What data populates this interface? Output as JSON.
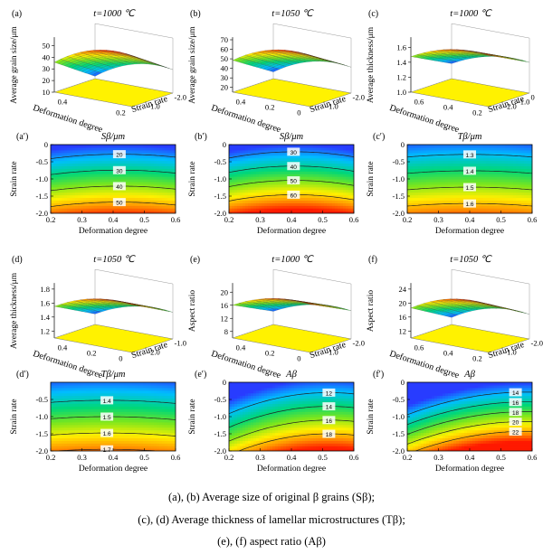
{
  "figure": {
    "captions": [
      "(a), (b) Average  size of original β grains (Sβ);",
      "(c), (d) Average thickness of lamellar microstructures (Tβ);",
      "(e), (f) aspect ratio (Aβ)"
    ]
  },
  "colors": {
    "high": "#ff2a00",
    "mid": "#ffee00",
    "low": "#00c8ff",
    "floor": "#fff200"
  },
  "chart_data": [
    {
      "type": "surface3d",
      "panel": "(a)",
      "title": "t=1000 ℃",
      "zlabel": "Average grain size/μm",
      "xlabel": "Deformation degree",
      "ylabel": "Strain rate",
      "x_ticks": [
        "0.4",
        "0.2"
      ],
      "y_ticks": [
        "-1.0",
        "-2.0"
      ],
      "z_ticks": [
        "10",
        "20",
        "30",
        "40",
        "50"
      ],
      "zlim": [
        10,
        55
      ],
      "surface_range": [
        12,
        55
      ]
    },
    {
      "type": "surface3d",
      "panel": "(b)",
      "title": "t=1050 ℃",
      "zlabel": "Average grain size/μm",
      "xlabel": "Deformation degree",
      "ylabel": "Strain rate",
      "x_ticks": [
        "0.4",
        "0.2",
        "0"
      ],
      "y_ticks": [
        "-1.0",
        "-2.0"
      ],
      "z_ticks": [
        "20",
        "30",
        "40",
        "50",
        "60",
        "70"
      ],
      "zlim": [
        15,
        70
      ],
      "surface_range": [
        22,
        70
      ]
    },
    {
      "type": "surface3d",
      "panel": "(c)",
      "title": "t=1000 ℃",
      "zlabel": "Average thickness/μm",
      "xlabel": "Deformation degree",
      "ylabel": "Strain rate",
      "x_ticks": [
        "0.6",
        "0.4",
        "0.2"
      ],
      "y_ticks": [
        "-2.0",
        "-1.0",
        "0"
      ],
      "z_ticks": [
        "1.0",
        "1.2",
        "1.4",
        "1.6"
      ],
      "zlim": [
        1.0,
        1.7
      ],
      "surface_range": [
        1.2,
        1.7
      ]
    },
    {
      "type": "contour",
      "panel": "(a′)",
      "title": "Sβ/μm",
      "xlabel": "Deformation degree",
      "ylabel": "Strain rate",
      "xlim": [
        0.2,
        0.6
      ],
      "ylim": [
        -2.0,
        0
      ],
      "x_ticks": [
        "0.2",
        "0.3",
        "0.4",
        "0.5",
        "0.6"
      ],
      "y_ticks": [
        "0",
        "-0.5",
        "-1.0",
        "-1.5",
        "-2.0"
      ],
      "levels": [
        "20",
        "30",
        "40",
        "50"
      ],
      "model": {
        "a": 14,
        "b": 43,
        "c": 58,
        "x0": 0.42,
        "zmin": 14,
        "zmax": 58
      }
    },
    {
      "type": "contour",
      "panel": "(b′)",
      "title": "Sβ/μm",
      "xlabel": "Deformation degree",
      "ylabel": "Strain rate",
      "xlim": [
        0.2,
        0.6
      ],
      "ylim": [
        -2.0,
        0
      ],
      "x_ticks": [
        "0.2",
        "0.3",
        "0.4",
        "0.5",
        "0.6"
      ],
      "y_ticks": [
        "0",
        "-0.5",
        "-1.0",
        "-1.5",
        "-2.0"
      ],
      "levels": [
        "30",
        "40",
        "50",
        "60"
      ],
      "model": {
        "a": 25,
        "b": 48,
        "c": 100,
        "x0": 0.41,
        "zmin": 25,
        "zmax": 70
      }
    },
    {
      "type": "contour",
      "panel": "(c′)",
      "title": "Tβ/μm",
      "xlabel": "Deformation degree",
      "ylabel": "Strain rate",
      "xlim": [
        0.2,
        0.6
      ],
      "ylim": [
        -2.0,
        0
      ],
      "x_ticks": [
        "0.2",
        "0.3",
        "0.4",
        "0.5",
        "0.6"
      ],
      "y_ticks": [
        "0",
        "-0.5",
        "-1.0",
        "-1.5",
        "-2.0"
      ],
      "levels": [
        "1.3",
        "1.4",
        "1.5",
        "1.6"
      ],
      "model": {
        "a": 1.24,
        "b": 0.42,
        "c": 0.4,
        "x0": 0.4,
        "zmin": 1.2,
        "zmax": 1.7
      }
    },
    {
      "type": "surface3d",
      "panel": "(d)",
      "title": "t=1050 ℃",
      "zlabel": "Average thickness/μm",
      "xlabel": "Deformation degree",
      "ylabel": "Strain rate",
      "x_ticks": [
        "0.4",
        "0.2",
        "0"
      ],
      "y_ticks": [
        "-2.0",
        "-1.0"
      ],
      "z_ticks": [
        "1.2",
        "1.4",
        "1.6",
        "1.8"
      ],
      "zlim": [
        1.1,
        1.85
      ],
      "surface_range": [
        1.25,
        1.8
      ]
    },
    {
      "type": "surface3d",
      "panel": "(e)",
      "title": "t=1000 ℃",
      "zlabel": "Aspect ratio",
      "xlabel": "Deformation degree",
      "ylabel": "Strain rate",
      "x_ticks": [
        "0.4",
        "0.2",
        "0"
      ],
      "y_ticks": [
        "-1.0",
        "-2.0"
      ],
      "z_ticks": [
        "8",
        "12",
        "16",
        "20"
      ],
      "zlim": [
        6,
        22
      ],
      "surface_range": [
        10,
        21
      ]
    },
    {
      "type": "surface3d",
      "panel": "(f)",
      "title": "t=1050 ℃",
      "zlabel": "Aspect ratio",
      "xlabel": "Deformation degree",
      "ylabel": "Strain rate",
      "x_ticks": [
        "0.6",
        "0.4",
        "0.2"
      ],
      "y_ticks": [
        "-1.0",
        "-2.0"
      ],
      "z_ticks": [
        "12",
        "16",
        "20",
        "24"
      ],
      "zlim": [
        10,
        25
      ],
      "surface_range": [
        12,
        24
      ]
    },
    {
      "type": "contour",
      "panel": "(d′)",
      "title": "Tβ/μm",
      "xlabel": "Deformation degree",
      "ylabel": "Strain rate",
      "xlim": [
        0.2,
        0.6
      ],
      "ylim": [
        -2.0,
        0
      ],
      "x_ticks": [
        "0.2",
        "0.3",
        "0.4",
        "0.5",
        "0.6"
      ],
      "y_ticks": [
        "-0.5",
        "-1.0",
        "-1.5",
        "-2.0"
      ],
      "levels": [
        "1.4",
        "1.5",
        "1.6",
        "1.7"
      ],
      "model": {
        "a": 1.29,
        "b": 0.42,
        "c": 0.4,
        "x0": 0.38,
        "zmin": 1.25,
        "zmax": 1.75
      }
    },
    {
      "type": "contour",
      "panel": "(e′)",
      "title": "Aβ",
      "xlabel": "Deformation degree",
      "ylabel": "Strain rate",
      "xlim": [
        0.2,
        0.6
      ],
      "ylim": [
        -2.0,
        0
      ],
      "x_ticks": [
        "0.2",
        "0.3",
        "0.4",
        "0.5",
        "0.6"
      ],
      "y_ticks": [
        "0",
        "-0.5",
        "-1.0",
        "-1.5",
        "-2.0"
      ],
      "levels": [
        "12",
        "14",
        "16",
        "18"
      ],
      "model": {
        "a": 10.5,
        "b": 10,
        "c": 30,
        "x0": 0.52,
        "zmin": 10,
        "zmax": 20
      }
    },
    {
      "type": "contour",
      "panel": "(f′)",
      "title": "Aβ",
      "xlabel": "Deformation degree",
      "ylabel": "Strain rate",
      "xlim": [
        0.2,
        0.6
      ],
      "ylim": [
        -2.0,
        0
      ],
      "x_ticks": [
        "0.2",
        "0.3",
        "0.4",
        "0.5",
        "0.6"
      ],
      "y_ticks": [
        "0",
        "-0.5",
        "-1.0",
        "-1.5",
        "-2.0"
      ],
      "levels": [
        "14",
        "16",
        "18",
        "20",
        "22"
      ],
      "model": {
        "a": 12,
        "b": 14,
        "c": 32,
        "x0": 0.58,
        "zmin": 12,
        "zmax": 24
      }
    }
  ]
}
